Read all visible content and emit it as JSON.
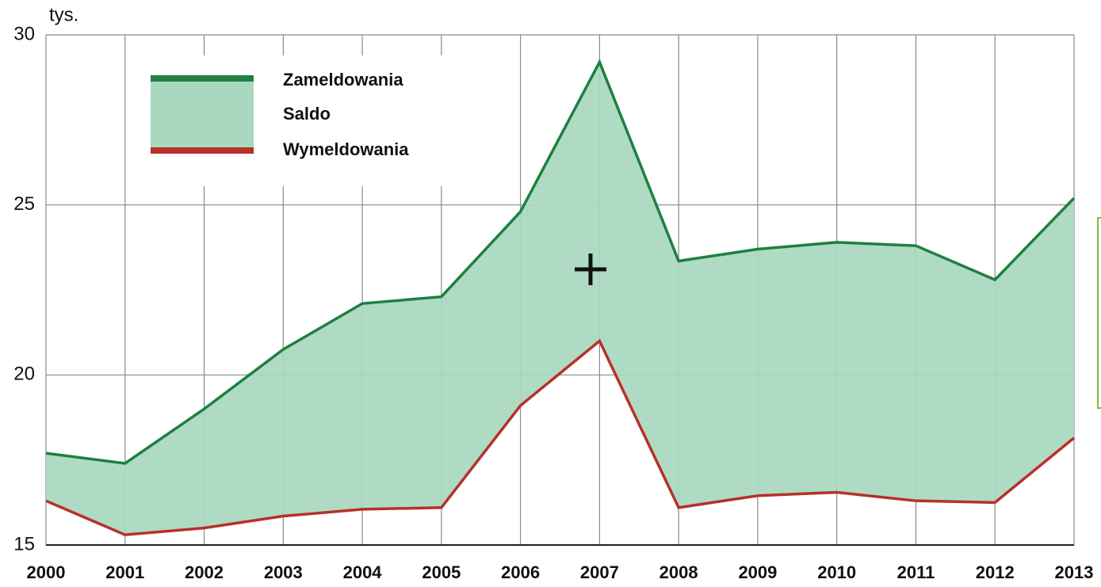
{
  "chart_data": {
    "type": "line",
    "y_unit": "tys.",
    "categories": [
      "2000",
      "2001",
      "2002",
      "2003",
      "2004",
      "2005",
      "2006",
      "2007",
      "2008",
      "2009",
      "2010",
      "2011",
      "2012",
      "2013"
    ],
    "series": [
      {
        "name": "Zameldowania",
        "color": "#1e8040",
        "values": [
          17.7,
          17.4,
          19.0,
          20.75,
          22.1,
          22.3,
          24.8,
          29.2,
          23.35,
          23.7,
          23.9,
          23.8,
          22.8,
          25.2
        ]
      },
      {
        "name": "Wymeldowania",
        "color": "#b8302a",
        "values": [
          16.3,
          15.3,
          15.5,
          15.85,
          16.05,
          16.1,
          19.1,
          21.0,
          16.1,
          16.45,
          16.55,
          16.3,
          16.25,
          18.15
        ]
      }
    ],
    "area": {
      "name": "Saldo",
      "color": "#a8d8bf"
    },
    "ylim": [
      15,
      30
    ],
    "yticks": [
      15,
      20,
      25,
      30
    ],
    "grid": true
  }
}
